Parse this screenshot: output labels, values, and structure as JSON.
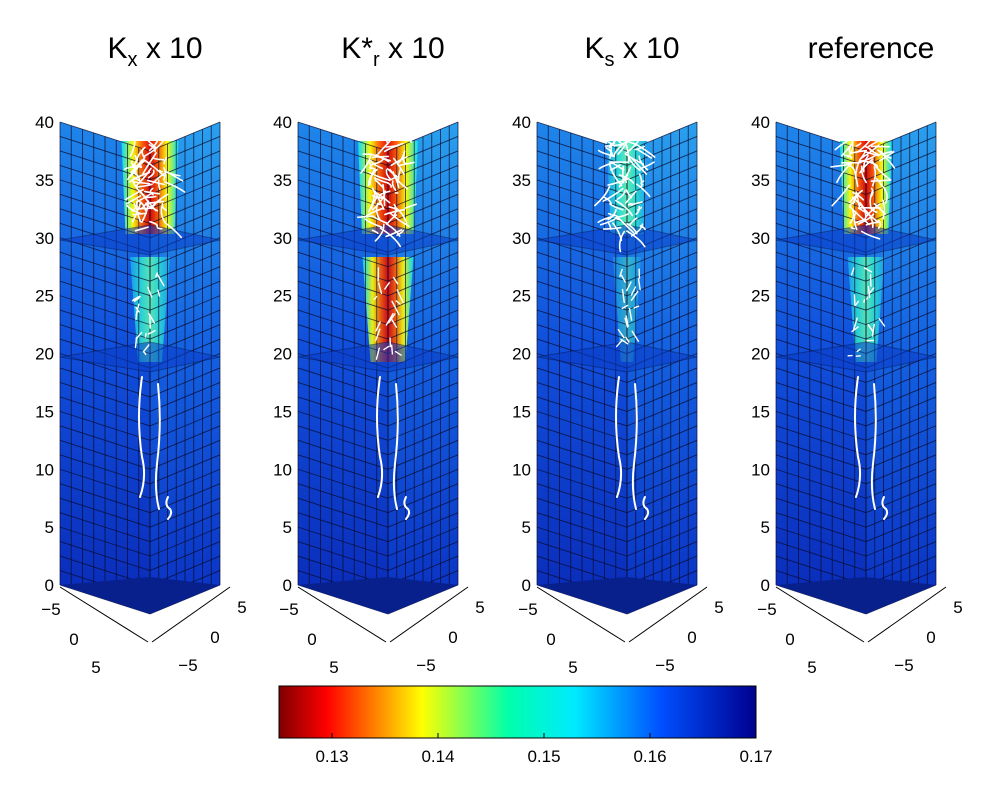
{
  "chart_data": {
    "type": "heatmap",
    "panels": [
      {
        "id": "kx",
        "title_main": "K",
        "title_sub": "x",
        "title_rest": " x 10",
        "hotspot_level": 0.9
      },
      {
        "id": "kr",
        "title_main": "K*",
        "title_sub": "r",
        "title_rest": " x 10",
        "hotspot_level": 1.0
      },
      {
        "id": "ks",
        "title_main": "K",
        "title_sub": "s",
        "title_rest": " x 10",
        "hotspot_level": 0.35
      },
      {
        "id": "ref",
        "title_main": "reference",
        "title_sub": "",
        "title_rest": "",
        "hotspot_level": 0.75
      }
    ],
    "z_axis": {
      "range": [
        0,
        40
      ],
      "ticks": [
        "0",
        "5",
        "10",
        "15",
        "20",
        "25",
        "30",
        "35",
        "40"
      ]
    },
    "x_axis": {
      "range": [
        -5,
        5
      ],
      "ticks": [
        "-5",
        "0",
        "5"
      ]
    },
    "y_axis": {
      "range": [
        -5,
        5
      ],
      "ticks": [
        "5",
        "0",
        "-5"
      ]
    },
    "colorbar": {
      "range": [
        0.125,
        0.17
      ],
      "ticks": [
        "0.13",
        "0.14",
        "0.15",
        "0.16",
        "0.17"
      ],
      "colormap": "jet-reversed"
    }
  }
}
